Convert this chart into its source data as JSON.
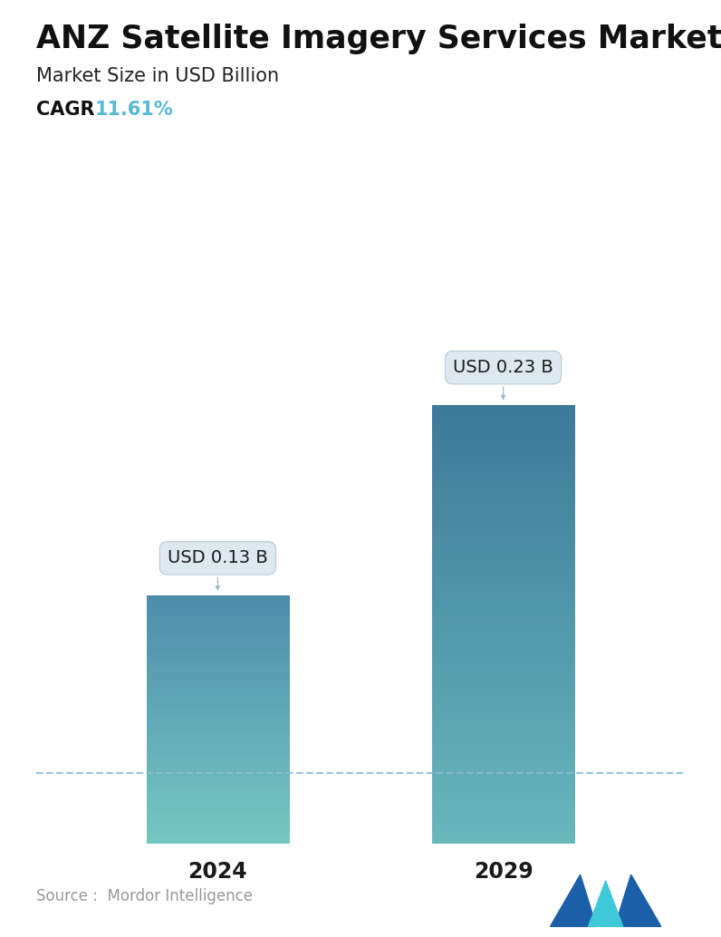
{
  "title": "ANZ Satellite Imagery Services Market",
  "subtitle": "Market Size in USD Billion",
  "cagr_label": "CAGR ",
  "cagr_value": "11.61%",
  "cagr_color": "#5ab8d5",
  "categories": [
    "2024",
    "2029"
  ],
  "values": [
    0.13,
    0.23
  ],
  "bar_labels": [
    "USD 0.13 B",
    "USD 0.23 B"
  ],
  "bar1_top_color": "#4e8dab",
  "bar1_bottom_color": "#76c8c2",
  "bar2_top_color": "#3d7a9a",
  "bar2_bottom_color": "#68b8bc",
  "dashed_line_color": "#89bbd4",
  "dashed_line_y": 0.13,
  "source_text": "Source :  Mordor Intelligence",
  "source_color": "#999999",
  "background_color": "#ffffff",
  "ylim": [
    0,
    0.285
  ],
  "bar_width": 0.22,
  "x_positions": [
    0.28,
    0.72
  ],
  "title_fontsize": 25,
  "subtitle_fontsize": 15,
  "cagr_fontsize": 15,
  "xlabel_fontsize": 17,
  "label_fontsize": 14
}
